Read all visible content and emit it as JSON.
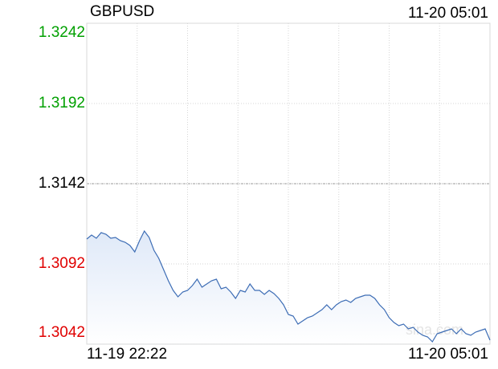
{
  "chart_data": {
    "type": "line",
    "title": "GBPUSD",
    "time": "11-20 05:01",
    "x_labels": [
      "11-19 22:22",
      "11-20 05:01"
    ],
    "watermark": "sina.com",
    "ylim": [
      1.3042,
      1.3242
    ],
    "yticks": [
      1.3042,
      1.3092,
      1.3142,
      1.3192,
      1.3242
    ],
    "ytick_colors": [
      "#e00000",
      "#e00000",
      "#000000",
      "#00a000",
      "#00a000"
    ],
    "color": "#3d6db5",
    "grid": true,
    "values": [
      1.31075,
      1.311,
      1.3108,
      1.31115,
      1.31105,
      1.3108,
      1.31085,
      1.31065,
      1.31055,
      1.31035,
      1.30995,
      1.31065,
      1.31125,
      1.31085,
      1.31005,
      1.30955,
      1.30885,
      1.30815,
      1.30755,
      1.30715,
      1.30745,
      1.30755,
      1.30785,
      1.30825,
      1.30775,
      1.30795,
      1.30815,
      1.30825,
      1.30765,
      1.30775,
      1.30745,
      1.30705,
      1.30755,
      1.30745,
      1.30795,
      1.30755,
      1.30755,
      1.3073,
      1.30755,
      1.30735,
      1.30705,
      1.30665,
      1.30605,
      1.30595,
      1.30545,
      1.30565,
      1.30585,
      1.30595,
      1.30615,
      1.30635,
      1.30665,
      1.30635,
      1.30665,
      1.30685,
      1.30695,
      1.3068,
      1.30705,
      1.30715,
      1.30725,
      1.30725,
      1.30705,
      1.30665,
      1.30635,
      1.30585,
      1.30555,
      1.30535,
      1.30545,
      1.30515,
      1.30525,
      1.30495,
      1.30475,
      1.30465,
      1.30435,
      1.30485,
      1.30495,
      1.30505,
      1.30515,
      1.30485,
      1.30515,
      1.30485,
      1.30475,
      1.30495,
      1.30505,
      1.30515,
      1.30445
    ]
  }
}
